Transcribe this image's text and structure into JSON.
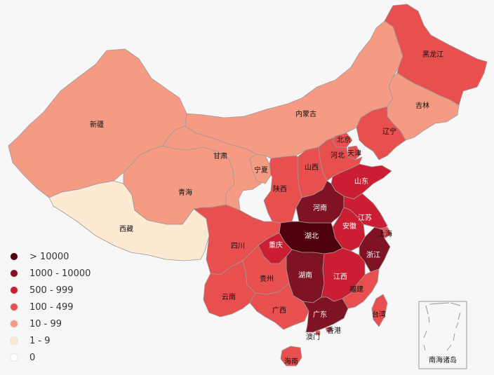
{
  "legend": {
    "items": [
      {
        "label": "> 10000",
        "color": "#4f000d"
      },
      {
        "label": "1000 - 10000",
        "color": "#7f1324"
      },
      {
        "label": "500 - 999",
        "color": "#cc1e33"
      },
      {
        "label": "100 - 499",
        "color": "#e7504f"
      },
      {
        "label": "10 - 99",
        "color": "#f59b84"
      },
      {
        "label": "1 - 9",
        "color": "#fee9d2"
      },
      {
        "label": "0",
        "color": "#ffffff"
      }
    ]
  },
  "provinces": {
    "heilongjiang": {
      "name": "黑龙江",
      "color": "#e7504f"
    },
    "jilin": {
      "name": "吉林",
      "color": "#f59b84"
    },
    "liaoning": {
      "name": "辽宁",
      "color": "#e7504f"
    },
    "neimenggu": {
      "name": "内蒙古",
      "color": "#f59b84"
    },
    "xinjiang": {
      "name": "新疆",
      "color": "#f59b84"
    },
    "gansu": {
      "name": "甘肃",
      "color": "#f59b84"
    },
    "ningxia": {
      "name": "宁夏",
      "color": "#f59b84"
    },
    "qinghai": {
      "name": "青海",
      "color": "#f59b84"
    },
    "xizang": {
      "name": "西藏",
      "color": "#fee9d2"
    },
    "beijing": {
      "name": "北京",
      "color": "#e7504f"
    },
    "tianjin": {
      "name": "天津",
      "color": "#e7504f"
    },
    "hebei": {
      "name": "河北",
      "color": "#e7504f"
    },
    "shanxi": {
      "name": "山西",
      "color": "#e7504f"
    },
    "shaanxi": {
      "name": "陕西",
      "color": "#e7504f"
    },
    "shandong": {
      "name": "山东",
      "color": "#cc1e33"
    },
    "henan": {
      "name": "河南",
      "color": "#7f1324"
    },
    "jiangsu": {
      "name": "江苏",
      "color": "#cc1e33"
    },
    "anhui": {
      "name": "安徽",
      "color": "#cc1e33"
    },
    "shanghai": {
      "name": "上海",
      "color": "#e7504f"
    },
    "hubei": {
      "name": "湖北",
      "color": "#4f000d"
    },
    "sichuan": {
      "name": "四川",
      "color": "#e7504f"
    },
    "chongqing": {
      "name": "重庆",
      "color": "#cc1e33"
    },
    "zhejiang": {
      "name": "浙江",
      "color": "#7f1324"
    },
    "guizhou": {
      "name": "贵州",
      "color": "#e7504f"
    },
    "hunan": {
      "name": "湖南",
      "color": "#7f1324"
    },
    "jiangxi": {
      "name": "江西",
      "color": "#cc1e33"
    },
    "fujian": {
      "name": "福建",
      "color": "#e7504f"
    },
    "yunnan": {
      "name": "云南",
      "color": "#e7504f"
    },
    "guangxi": {
      "name": "广西",
      "color": "#e7504f"
    },
    "guangdong": {
      "name": "广东",
      "color": "#7f1324"
    },
    "hainan": {
      "name": "海南",
      "color": "#e7504f"
    },
    "taiwan": {
      "name": "台湾",
      "color": "#e7504f"
    },
    "xianggang": {
      "name": "香港",
      "color": "#e7504f"
    },
    "aomen": {
      "name": "澳门",
      "color": "#e7504f"
    }
  },
  "inset": {
    "label": "南海诸岛"
  }
}
